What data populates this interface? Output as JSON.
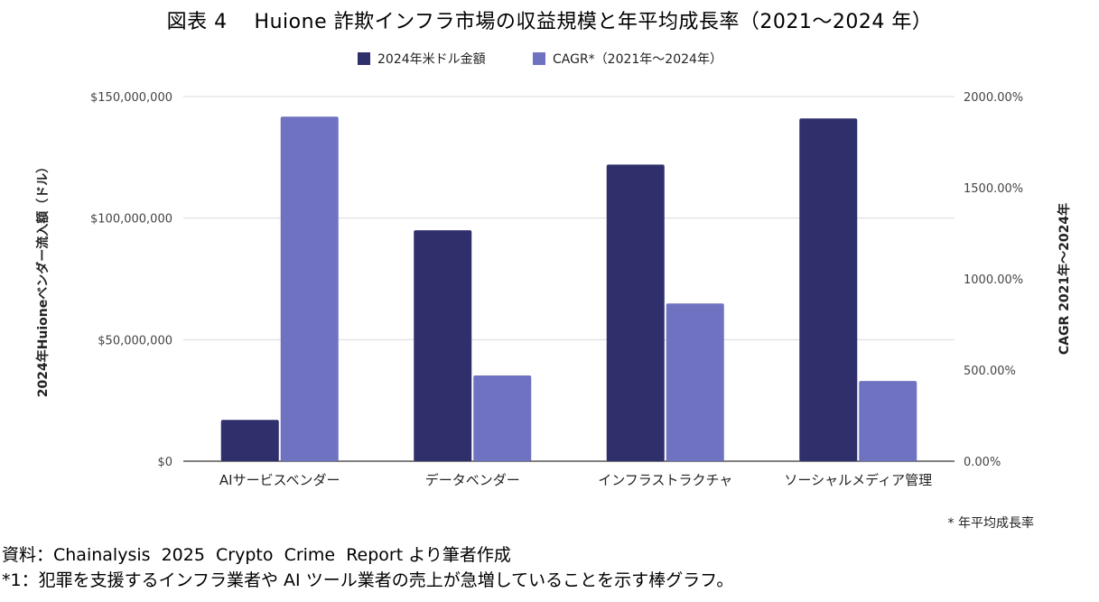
{
  "title": "図表 4　 Huione 詐欺インフラ市場の収益規模と年平均成長率（2021～2024 年）",
  "source": "資料：Chainalysis  2025  Crypto  Crime  Report より筆者作成",
  "note": "*1：犯罪を支援するインフラ業者や AI ツール業者の売上が急増していることを示す棒グラフ。",
  "colors": {
    "revenue": "#2e2f6b",
    "cagr": "#6f72c0",
    "grid": "#d9d9d9",
    "axis": "#555555"
  },
  "chart_data": {
    "type": "bar",
    "categories": [
      "AIサービスベンダー",
      "データベンダー",
      "インフラストラクチャ",
      "ソーシャルメディア管理"
    ],
    "series": [
      {
        "name": "2024年米ドル金額",
        "axis": "left",
        "values": [
          17000000,
          95000000,
          122000000,
          141000000
        ]
      },
      {
        "name": "CAGR*（2021年～2024年）",
        "axis": "right",
        "values": [
          1890,
          470,
          865,
          440
        ]
      }
    ],
    "ylabel": "2024年Huioneベンダー流入額（ドル）",
    "y2label": "CAGR 2021年～2024年",
    "ylim": [
      0,
      150000000
    ],
    "y2lim": [
      0,
      2000
    ],
    "yticks": [
      "$0",
      "$50,000,000",
      "$100,000,000",
      "$150,000,000"
    ],
    "y2ticks": [
      "0.00%",
      "500.00%",
      "1000.00%",
      "1500.00%",
      "2000.00%"
    ],
    "legend_position": "top-center",
    "footnote": "* 年平均成長率",
    "grid": true
  }
}
